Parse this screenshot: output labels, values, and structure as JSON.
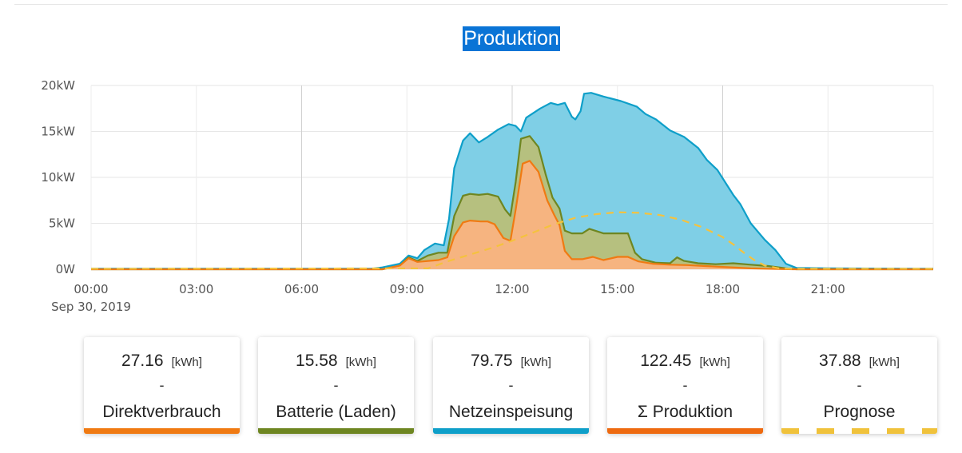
{
  "chart_data": {
    "type": "area",
    "title": "Produktion",
    "xlabel": "",
    "ylabel": "",
    "date_label": "Sep 30, 2019",
    "x_ticks": [
      "00:00",
      "03:00",
      "06:00",
      "09:00",
      "12:00",
      "15:00",
      "18:00",
      "21:00"
    ],
    "y_ticks": [
      "0W",
      "5kW",
      "10kW",
      "15kW",
      "20kW"
    ],
    "xlim": [
      0,
      24
    ],
    "ylim": [
      0,
      20
    ],
    "grid": true,
    "series": [
      {
        "key": "netz",
        "color": "#0e9fc9",
        "fill": "#7fcfe6",
        "points": [
          [
            0,
            0.05
          ],
          [
            8,
            0.05
          ],
          [
            8.3,
            0.2
          ],
          [
            8.8,
            0.6
          ],
          [
            9.05,
            1.5
          ],
          [
            9.3,
            1.2
          ],
          [
            9.5,
            2.1
          ],
          [
            9.8,
            2.8
          ],
          [
            10.05,
            2.6
          ],
          [
            10.2,
            5.5
          ],
          [
            10.35,
            11
          ],
          [
            10.6,
            14
          ],
          [
            10.8,
            14.8
          ],
          [
            11.05,
            13.8
          ],
          [
            11.3,
            14.4
          ],
          [
            11.6,
            15.2
          ],
          [
            11.9,
            15.8
          ],
          [
            12.1,
            15.6
          ],
          [
            12.25,
            15
          ],
          [
            12.4,
            16.5
          ],
          [
            12.8,
            17.5
          ],
          [
            13.1,
            18.1
          ],
          [
            13.3,
            17.9
          ],
          [
            13.5,
            18.1
          ],
          [
            13.7,
            16.6
          ],
          [
            13.8,
            16.3
          ],
          [
            13.95,
            17.2
          ],
          [
            14.05,
            19.1
          ],
          [
            14.25,
            19.2
          ],
          [
            14.6,
            18.8
          ],
          [
            15.1,
            18.3
          ],
          [
            15.55,
            17.7
          ],
          [
            15.8,
            16.9
          ],
          [
            16.1,
            16.3
          ],
          [
            16.5,
            15.1
          ],
          [
            16.9,
            14.4
          ],
          [
            17.3,
            13.2
          ],
          [
            17.55,
            11.9
          ],
          [
            17.85,
            10.8
          ],
          [
            18.1,
            9.3
          ],
          [
            18.3,
            8.1
          ],
          [
            18.5,
            7.1
          ],
          [
            18.8,
            5.0
          ],
          [
            19.2,
            3.2
          ],
          [
            19.5,
            2.1
          ],
          [
            19.8,
            0.6
          ],
          [
            20.1,
            0.15
          ],
          [
            21,
            0.1
          ],
          [
            24,
            0.05
          ]
        ]
      },
      {
        "key": "batterie",
        "color": "#6e8621",
        "fill": "#b6c07f",
        "points": [
          [
            0,
            0
          ],
          [
            8.3,
            0
          ],
          [
            8.8,
            0.4
          ],
          [
            9.05,
            1.3
          ],
          [
            9.3,
            0.9
          ],
          [
            9.6,
            1.5
          ],
          [
            9.9,
            1.8
          ],
          [
            10.15,
            1.8
          ],
          [
            10.35,
            5.8
          ],
          [
            10.6,
            8.0
          ],
          [
            10.8,
            8.2
          ],
          [
            11.05,
            8.1
          ],
          [
            11.3,
            8.2
          ],
          [
            11.6,
            7.9
          ],
          [
            11.8,
            6.5
          ],
          [
            11.95,
            5.8
          ],
          [
            12.1,
            9.5
          ],
          [
            12.25,
            14.2
          ],
          [
            12.5,
            14.5
          ],
          [
            12.75,
            13.3
          ],
          [
            12.95,
            10.4
          ],
          [
            13.15,
            7.8
          ],
          [
            13.35,
            6.6
          ],
          [
            13.5,
            4.2
          ],
          [
            13.7,
            3.9
          ],
          [
            14.0,
            3.9
          ],
          [
            14.2,
            4.4
          ],
          [
            14.6,
            3.9
          ],
          [
            15.0,
            3.9
          ],
          [
            15.3,
            3.9
          ],
          [
            15.5,
            1.8
          ],
          [
            15.7,
            1.1
          ],
          [
            16.1,
            0.7
          ],
          [
            16.5,
            0.65
          ],
          [
            16.7,
            1.3
          ],
          [
            16.9,
            0.9
          ],
          [
            17.3,
            0.65
          ],
          [
            17.8,
            0.55
          ],
          [
            18.3,
            0.65
          ],
          [
            18.8,
            0.5
          ],
          [
            19.3,
            0.35
          ],
          [
            19.8,
            0.1
          ],
          [
            20.1,
            0
          ],
          [
            24,
            0
          ]
        ]
      },
      {
        "key": "direkt",
        "color": "#f07a12",
        "fill": "#f6b480",
        "points": [
          [
            0,
            0
          ],
          [
            8.3,
            0
          ],
          [
            8.8,
            0.4
          ],
          [
            9.05,
            1.2
          ],
          [
            9.3,
            0.8
          ],
          [
            9.6,
            0.9
          ],
          [
            9.9,
            1.0
          ],
          [
            10.15,
            1.3
          ],
          [
            10.35,
            3.6
          ],
          [
            10.6,
            5.1
          ],
          [
            10.8,
            5.3
          ],
          [
            11.1,
            5.2
          ],
          [
            11.3,
            5.2
          ],
          [
            11.5,
            4.9
          ],
          [
            11.75,
            3.4
          ],
          [
            11.95,
            3.1
          ],
          [
            12.1,
            6.5
          ],
          [
            12.3,
            11.5
          ],
          [
            12.5,
            11.8
          ],
          [
            12.75,
            10.6
          ],
          [
            13.0,
            7.5
          ],
          [
            13.2,
            5.9
          ],
          [
            13.35,
            4.8
          ],
          [
            13.5,
            2.0
          ],
          [
            13.7,
            1.1
          ],
          [
            14.0,
            1.1
          ],
          [
            14.3,
            1.35
          ],
          [
            14.6,
            1.0
          ],
          [
            15.0,
            1.35
          ],
          [
            15.3,
            1.35
          ],
          [
            15.6,
            0.85
          ],
          [
            16.0,
            0.6
          ],
          [
            16.5,
            0.5
          ],
          [
            17.0,
            0.45
          ],
          [
            17.5,
            0.35
          ],
          [
            18.0,
            0.25
          ],
          [
            18.8,
            0.1
          ],
          [
            19.3,
            0.05
          ],
          [
            20,
            0
          ],
          [
            24,
            0
          ]
        ]
      },
      {
        "key": "prognose",
        "color": "#f5c23e",
        "dashed": true,
        "points": [
          [
            0,
            0.05
          ],
          [
            9.6,
            0.1
          ],
          [
            10.2,
            0.9
          ],
          [
            10.8,
            1.6
          ],
          [
            11.4,
            2.3
          ],
          [
            12.0,
            3.1
          ],
          [
            12.6,
            4.0
          ],
          [
            13.2,
            4.9
          ],
          [
            13.8,
            5.6
          ],
          [
            14.4,
            6.0
          ],
          [
            15.0,
            6.2
          ],
          [
            15.6,
            6.15
          ],
          [
            16.2,
            5.9
          ],
          [
            16.8,
            5.4
          ],
          [
            17.4,
            4.6
          ],
          [
            18.0,
            3.5
          ],
          [
            18.3,
            2.7
          ],
          [
            18.6,
            1.8
          ],
          [
            18.9,
            1.0
          ],
          [
            19.2,
            0.4
          ],
          [
            19.6,
            0.1
          ],
          [
            20,
            0.05
          ],
          [
            24,
            0.05
          ]
        ]
      }
    ]
  },
  "summary_cards": [
    {
      "value": "27.16",
      "unit": "[kWh]",
      "dash": "-",
      "label": "Direktverbrauch",
      "color": "#f07a12",
      "dashed": false
    },
    {
      "value": "15.58",
      "unit": "[kWh]",
      "dash": "-",
      "label": "Batterie (Laden)",
      "color": "#6e8621",
      "dashed": false
    },
    {
      "value": "79.75",
      "unit": "[kWh]",
      "dash": "-",
      "label": "Netzeinspeisung",
      "color": "#0e9fc9",
      "dashed": false
    },
    {
      "value": "122.45",
      "unit": "[kWh]",
      "dash": "-",
      "label": "Σ Produktion",
      "color": "#ee6a10",
      "dashed": false
    },
    {
      "value": "37.88",
      "unit": "[kWh]",
      "dash": "-",
      "label": "Prognose",
      "color": "#f0c23b",
      "dashed": true
    }
  ]
}
